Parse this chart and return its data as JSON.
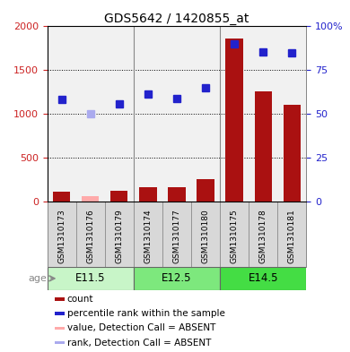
{
  "title": "GDS5642 / 1420855_at",
  "samples": [
    "GSM1310173",
    "GSM1310176",
    "GSM1310179",
    "GSM1310174",
    "GSM1310177",
    "GSM1310180",
    "GSM1310175",
    "GSM1310178",
    "GSM1310181"
  ],
  "age_groups": [
    {
      "label": "E11.5",
      "start": 0,
      "end": 3,
      "color": "#c8f5c8"
    },
    {
      "label": "E12.5",
      "start": 3,
      "end": 6,
      "color": "#7de87d"
    },
    {
      "label": "E14.5",
      "start": 6,
      "end": 9,
      "color": "#44dd44"
    }
  ],
  "count_values": [
    105,
    null,
    120,
    160,
    155,
    255,
    1860,
    1260,
    1100
  ],
  "count_absent": [
    null,
    60,
    null,
    null,
    null,
    null,
    null,
    null,
    null
  ],
  "rank_values": [
    1160,
    null,
    1110,
    1230,
    1170,
    1300,
    1800,
    1710,
    1700
  ],
  "rank_absent": [
    null,
    1000,
    null,
    null,
    null,
    null,
    null,
    null,
    null
  ],
  "left_ylim": [
    0,
    2000
  ],
  "left_yticks": [
    0,
    500,
    1000,
    1500,
    2000
  ],
  "right_ylim": [
    0,
    100
  ],
  "right_yticks": [
    0,
    25,
    50,
    75,
    100
  ],
  "bar_color": "#aa1111",
  "absent_bar_color": "#ffaaaa",
  "dot_color": "#2222cc",
  "absent_dot_color": "#aaaaee",
  "left_axis_color": "#cc2222",
  "right_axis_color": "#2222cc",
  "legend_items": [
    {
      "color": "#aa1111",
      "label": "count"
    },
    {
      "color": "#2222cc",
      "label": "percentile rank within the sample"
    },
    {
      "color": "#ffaaaa",
      "label": "value, Detection Call = ABSENT"
    },
    {
      "color": "#aaaaee",
      "label": "rank, Detection Call = ABSENT"
    }
  ]
}
